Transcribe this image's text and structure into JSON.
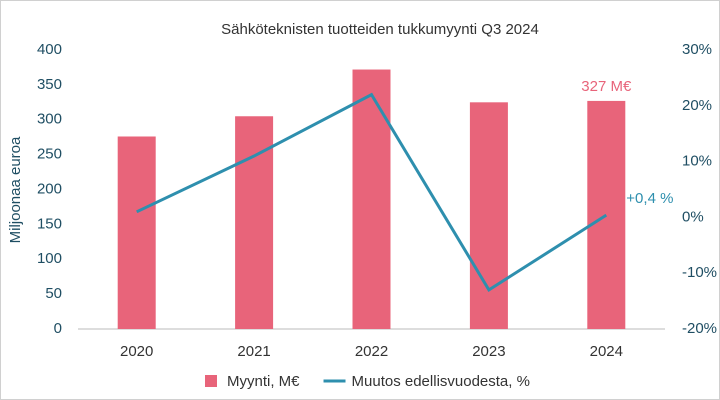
{
  "chart_data": {
    "type": "combo",
    "title": "Sähköteknisten tuotteiden tukkumyynti Q3 2024",
    "ylabel": "Miljoonaa euroa",
    "categories": [
      "2020",
      "2021",
      "2022",
      "2023",
      "2024"
    ],
    "series": [
      {
        "name": "Myynti, M€",
        "type": "bar",
        "color": "#e8647a",
        "values": [
          276,
          305,
          372,
          325,
          327
        ],
        "value_labels": [
          null,
          null,
          null,
          null,
          "327 M€"
        ]
      },
      {
        "name": "Muutos edellisvuodesta, %",
        "type": "line",
        "axis": "y2",
        "color": "#2e8fae",
        "values": [
          1,
          11,
          22,
          -13,
          0.4
        ],
        "value_labels": [
          null,
          null,
          null,
          null,
          "+0,4 %"
        ]
      }
    ],
    "ylim": [
      0,
      400
    ],
    "yticks": [
      0,
      50,
      100,
      150,
      200,
      250,
      300,
      350,
      400
    ],
    "y2lim": [
      -20,
      30
    ],
    "y2ticks": [
      {
        "value": -20,
        "label": "-20%"
      },
      {
        "value": -10,
        "label": "-10%"
      },
      {
        "value": 0,
        "label": "0%"
      },
      {
        "value": 10,
        "label": "10%"
      },
      {
        "value": 20,
        "label": "20%"
      },
      {
        "value": 30,
        "label": "30%"
      }
    ],
    "grid": false,
    "legend": "bottom"
  }
}
